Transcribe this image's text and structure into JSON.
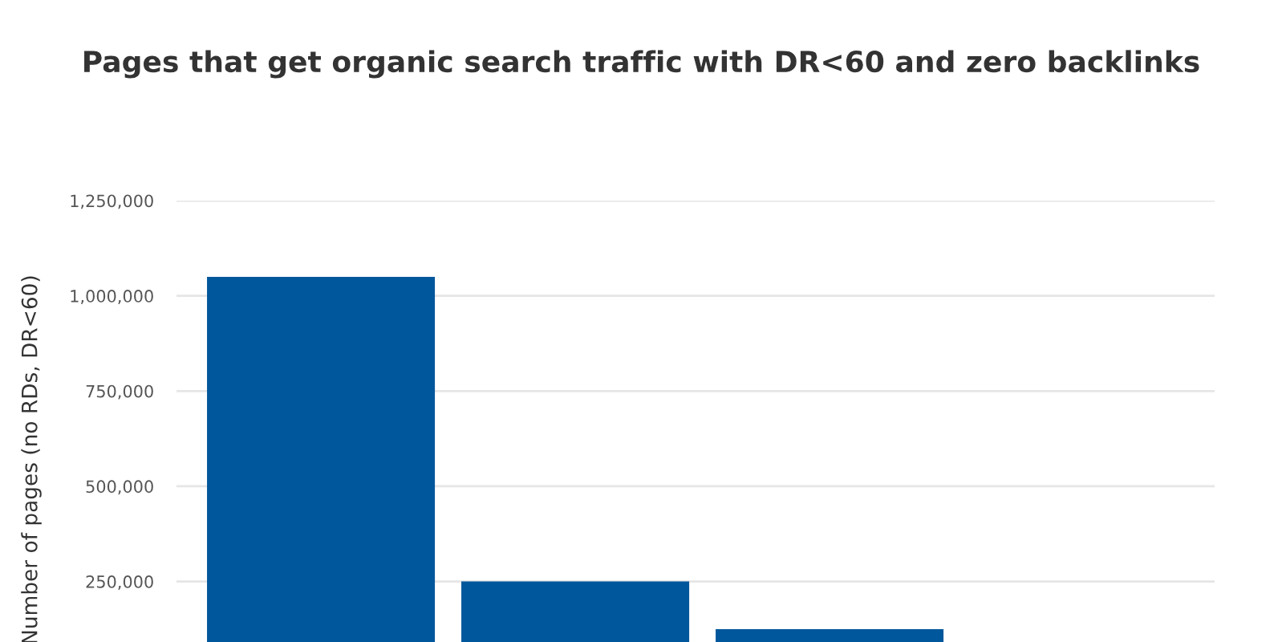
{
  "chart_data": {
    "type": "bar",
    "title": "Pages that get organic search traffic with DR<60 and zero backlinks",
    "ylabel": "Number of pages (no RDs, DR<60)",
    "categories": [
      null,
      null,
      null,
      null
    ],
    "values": [
      1050000,
      250000,
      125000,
      null
    ],
    "color": "#01579b",
    "ylim": [
      0,
      1250000
    ],
    "yticks": [
      {
        "value": 250000,
        "label": "250,000"
      },
      {
        "value": 500000,
        "label": "500,000"
      },
      {
        "value": 750000,
        "label": "750,000"
      },
      {
        "value": 1000000,
        "label": "1,000,000"
      },
      {
        "value": 1250000,
        "label": "1,250,000"
      }
    ],
    "grid": "y",
    "tick_labels": "y"
  }
}
